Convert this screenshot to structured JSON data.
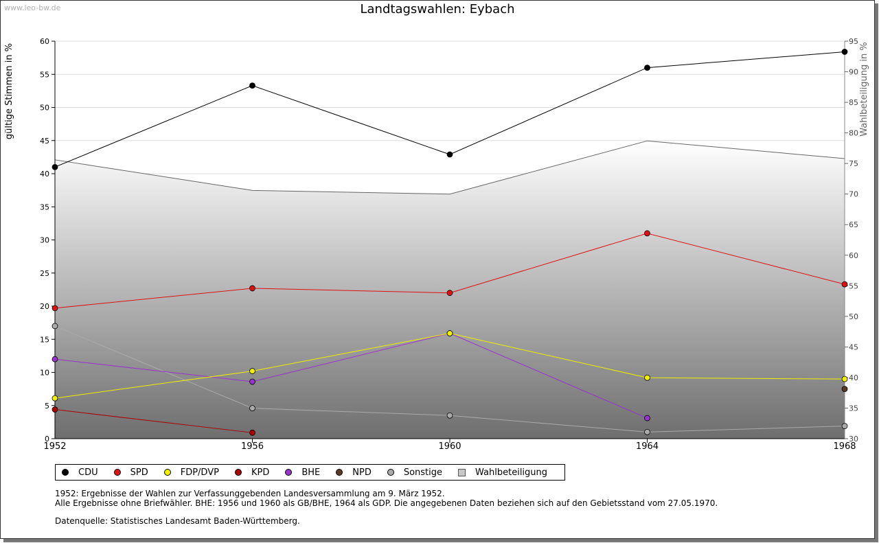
{
  "watermark": "www.leo-bw.de",
  "chart_data": {
    "type": "line",
    "title": "Landtagswahlen: Eybach",
    "ylabel": "gültige Stimmen in %",
    "y2label": "Wahlbeteiligung in %",
    "xlabel": "",
    "x": [
      1952,
      1956,
      1960,
      1964,
      1968
    ],
    "x_ticks": [
      "1952",
      "1956",
      "1960",
      "1964",
      "1968"
    ],
    "ylim": [
      0,
      60
    ],
    "y_ticks": [
      0,
      5,
      10,
      15,
      20,
      25,
      30,
      35,
      40,
      45,
      50,
      55,
      60
    ],
    "y2lim": [
      30,
      95
    ],
    "y2_ticks": [
      30,
      35,
      40,
      45,
      50,
      55,
      60,
      65,
      70,
      75,
      80,
      85,
      90,
      95
    ],
    "grid": true,
    "series": [
      {
        "name": "CDU",
        "color": "#000000",
        "values": [
          41.0,
          53.3,
          42.9,
          56.0,
          58.4
        ]
      },
      {
        "name": "SPD",
        "color": "#dd1111",
        "values": [
          19.7,
          22.7,
          22.0,
          31.0,
          23.3
        ]
      },
      {
        "name": "FDP/DVP",
        "color": "#f0f000",
        "values": [
          6.1,
          10.2,
          15.9,
          9.2,
          9.0
        ]
      },
      {
        "name": "KPD",
        "color": "#aa0000",
        "values": [
          4.4,
          0.9,
          null,
          null,
          null
        ]
      },
      {
        "name": "BHE",
        "color": "#9933cc",
        "values": [
          12.0,
          8.6,
          15.9,
          3.1,
          null
        ]
      },
      {
        "name": "NPD",
        "color": "#5a3a22",
        "values": [
          null,
          null,
          null,
          null,
          7.5
        ]
      },
      {
        "name": "Sonstige",
        "color": "#aaaaaa",
        "values": [
          17.0,
          4.6,
          3.5,
          1.0,
          1.9
        ]
      }
    ],
    "turnout": {
      "name": "Wahlbeteiligung",
      "color": "#888888",
      "values": [
        75.6,
        70.6,
        70.0,
        78.7,
        75.8
      ]
    }
  },
  "legend": [
    {
      "label": "CDU",
      "color": "#000000"
    },
    {
      "label": "SPD",
      "color": "#dd1111"
    },
    {
      "label": "FDP/DVP",
      "color": "#f0f000"
    },
    {
      "label": "KPD",
      "color": "#aa0000"
    },
    {
      "label": "BHE",
      "color": "#9933cc"
    },
    {
      "label": "NPD",
      "color": "#5a3a22"
    },
    {
      "label": "Sonstige",
      "color": "#aaaaaa"
    },
    {
      "label": "Wahlbeteiligung",
      "color": "#c8c8c8"
    }
  ],
  "notes": {
    "line1": "1952: Ergebnisse der Wahlen zur Verfassunggebenden Landesversammlung am 9. März 1952.",
    "line2": "Alle Ergebnisse ohne Briefwähler. BHE: 1956 und 1960 als GB/BHE, 1964 als GDP. Die angegebenen Daten beziehen sich auf den Gebietsstand vom 27.05.1970.",
    "source": "Datenquelle: Statistisches Landesamt Baden-Württemberg."
  }
}
